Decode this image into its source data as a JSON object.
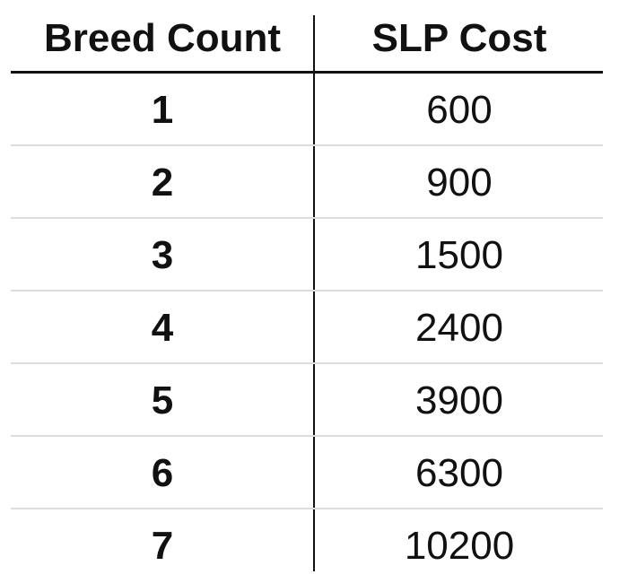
{
  "chart_data": {
    "type": "table",
    "columns": [
      "Breed Count",
      "SLP Cost"
    ],
    "rows": [
      {
        "breed_count": "1",
        "slp_cost": "600"
      },
      {
        "breed_count": "2",
        "slp_cost": "900"
      },
      {
        "breed_count": "3",
        "slp_cost": "1500"
      },
      {
        "breed_count": "4",
        "slp_cost": "2400"
      },
      {
        "breed_count": "5",
        "slp_cost": "3900"
      },
      {
        "breed_count": "6",
        "slp_cost": "6300"
      },
      {
        "breed_count": "7",
        "slp_cost": "10200"
      }
    ]
  },
  "colors": {
    "text": "#111111",
    "header_rule": "#111111",
    "row_rule": "#dddddd",
    "background": "#ffffff"
  }
}
